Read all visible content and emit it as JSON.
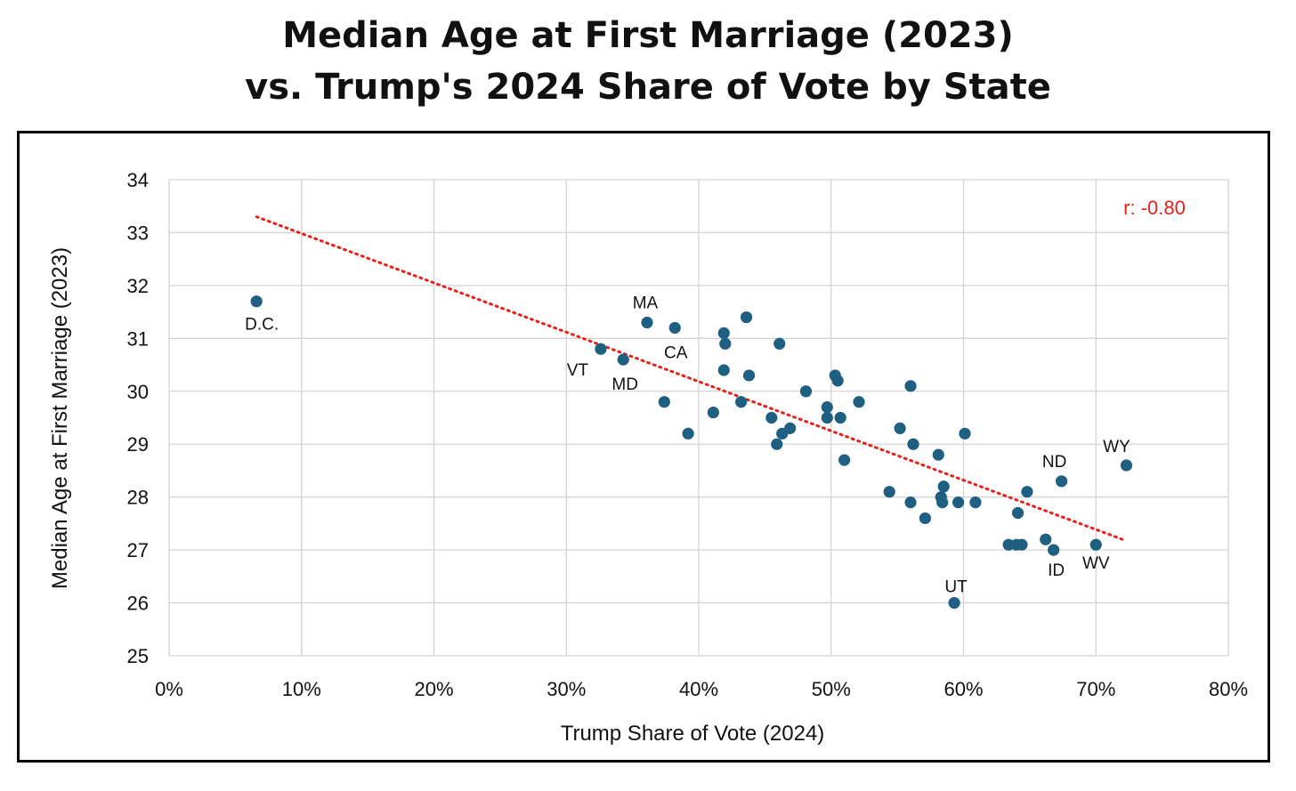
{
  "title": {
    "line1": "Median Age at First Marriage (2023)",
    "line2": "vs. Trump's 2024 Share of Vote by State"
  },
  "chart_data": {
    "type": "scatter",
    "xlabel": "Trump Share of Vote (2024)",
    "ylabel": "Median Age at First Marriage (2023)",
    "xlim": [
      0,
      80
    ],
    "ylim": [
      25,
      34
    ],
    "xticks": [
      "0%",
      "10%",
      "20%",
      "30%",
      "40%",
      "50%",
      "60%",
      "70%",
      "80%"
    ],
    "yticks": [
      "25",
      "26",
      "27",
      "28",
      "29",
      "30",
      "31",
      "32",
      "33",
      "34"
    ],
    "grid": true,
    "point_color": "#1f5f82",
    "trendline": {
      "style": "dotted",
      "color": "#e8201a",
      "x": [
        6.6,
        72.0
      ],
      "y": [
        33.3,
        27.2
      ]
    },
    "correlation_label": "r: -0.80",
    "correlation_color": "#e8201a",
    "points": [
      {
        "x": 6.6,
        "y": 31.7,
        "label": "D.C."
      },
      {
        "x": 32.6,
        "y": 30.8,
        "label": "VT"
      },
      {
        "x": 34.3,
        "y": 30.6,
        "label": "MD"
      },
      {
        "x": 36.1,
        "y": 31.3,
        "label": "MA"
      },
      {
        "x": 38.2,
        "y": 31.2,
        "label": "CA"
      },
      {
        "x": 37.4,
        "y": 29.8
      },
      {
        "x": 39.2,
        "y": 29.2
      },
      {
        "x": 41.1,
        "y": 29.6
      },
      {
        "x": 41.9,
        "y": 31.1
      },
      {
        "x": 42.0,
        "y": 30.9
      },
      {
        "x": 41.9,
        "y": 30.4
      },
      {
        "x": 43.2,
        "y": 29.8
      },
      {
        "x": 43.6,
        "y": 31.4
      },
      {
        "x": 43.8,
        "y": 30.3
      },
      {
        "x": 45.5,
        "y": 29.5
      },
      {
        "x": 45.9,
        "y": 29.0
      },
      {
        "x": 46.1,
        "y": 30.9
      },
      {
        "x": 46.3,
        "y": 29.2
      },
      {
        "x": 46.9,
        "y": 29.3
      },
      {
        "x": 48.1,
        "y": 30.0
      },
      {
        "x": 49.7,
        "y": 29.7
      },
      {
        "x": 49.7,
        "y": 29.5
      },
      {
        "x": 50.3,
        "y": 30.3
      },
      {
        "x": 50.5,
        "y": 30.2
      },
      {
        "x": 50.7,
        "y": 29.5
      },
      {
        "x": 51.0,
        "y": 28.7
      },
      {
        "x": 52.1,
        "y": 29.8
      },
      {
        "x": 54.4,
        "y": 28.1
      },
      {
        "x": 55.2,
        "y": 29.3
      },
      {
        "x": 56.0,
        "y": 30.1
      },
      {
        "x": 56.0,
        "y": 27.9
      },
      {
        "x": 56.2,
        "y": 29.0
      },
      {
        "x": 57.1,
        "y": 27.6
      },
      {
        "x": 58.1,
        "y": 28.8
      },
      {
        "x": 58.3,
        "y": 28.0
      },
      {
        "x": 58.4,
        "y": 27.9
      },
      {
        "x": 58.5,
        "y": 28.2
      },
      {
        "x": 59.3,
        "y": 26.0,
        "label": "UT"
      },
      {
        "x": 59.6,
        "y": 27.9
      },
      {
        "x": 60.1,
        "y": 29.2
      },
      {
        "x": 60.9,
        "y": 27.9
      },
      {
        "x": 63.4,
        "y": 27.1
      },
      {
        "x": 64.0,
        "y": 27.1
      },
      {
        "x": 64.1,
        "y": 27.7
      },
      {
        "x": 64.4,
        "y": 27.1
      },
      {
        "x": 64.8,
        "y": 28.1
      },
      {
        "x": 66.2,
        "y": 27.2
      },
      {
        "x": 66.8,
        "y": 27.0,
        "label": "ID"
      },
      {
        "x": 67.4,
        "y": 28.3,
        "label": "ND"
      },
      {
        "x": 70.0,
        "y": 27.1,
        "label": "WV"
      },
      {
        "x": 72.3,
        "y": 28.6,
        "label": "WY"
      }
    ]
  }
}
